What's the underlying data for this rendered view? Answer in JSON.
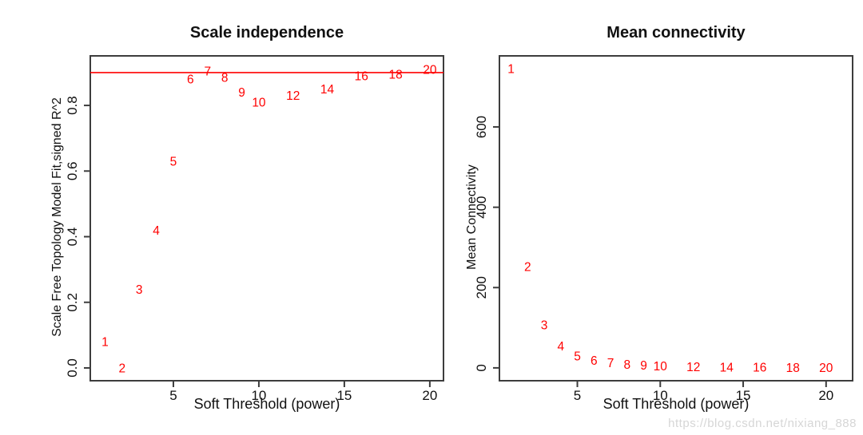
{
  "figure": {
    "background": "#ffffff",
    "text_color": "#111111",
    "accent_red": "#ff0000"
  },
  "watermark": {
    "text": "https://blog.csdn.net/nixiang_888"
  },
  "chart_data": [
    {
      "type": "scatter",
      "title": "Scale independence",
      "xlabel": "Soft Threshold (power)",
      "ylabel": "Scale Free Topology Model Fit,signed R^2",
      "marker": "numeric-text-labels",
      "point_label_color": "#ff0000",
      "x": [
        1,
        2,
        3,
        4,
        5,
        6,
        7,
        8,
        9,
        10,
        12,
        14,
        16,
        18,
        20
      ],
      "y": [
        0.08,
        0.0,
        0.24,
        0.42,
        0.63,
        0.88,
        0.905,
        0.885,
        0.84,
        0.81,
        0.83,
        0.85,
        0.89,
        0.895,
        0.91
      ],
      "point_labels": [
        "1",
        "2",
        "3",
        "4",
        "5",
        "6",
        "7",
        "8",
        "9",
        "10",
        "12",
        "14",
        "16",
        "18",
        "20"
      ],
      "xlim": [
        0.14,
        20.8
      ],
      "ylim": [
        -0.039,
        0.951
      ],
      "xticks": [
        5,
        10,
        15,
        20
      ],
      "xtick_labels": [
        "5",
        "10",
        "15",
        "20"
      ],
      "yticks": [
        0.0,
        0.2,
        0.4,
        0.6,
        0.8
      ],
      "ytick_labels": [
        "0.0",
        "0.2",
        "0.4",
        "0.6",
        "0.8"
      ],
      "grid": false,
      "legend": null,
      "hline": {
        "y": 0.9,
        "color": "#ff0000"
      }
    },
    {
      "type": "scatter",
      "title": "Mean connectivity",
      "xlabel": "Soft Threshold (power)",
      "ylabel": "Mean Connectivity",
      "marker": "numeric-text-labels",
      "point_label_color": "#ff0000",
      "x": [
        1,
        2,
        3,
        4,
        5,
        6,
        7,
        8,
        9,
        10,
        12,
        14,
        16,
        18,
        20
      ],
      "y": [
        745,
        252,
        107,
        54,
        30,
        19,
        13,
        9,
        7,
        5,
        3,
        2,
        1.5,
        1.2,
        1
      ],
      "point_labels": [
        "1",
        "2",
        "3",
        "4",
        "5",
        "6",
        "7",
        "8",
        "9",
        "10",
        "12",
        "14",
        "16",
        "18",
        "20"
      ],
      "xlim": [
        0.3,
        21.6
      ],
      "ylim": [
        -32,
        777
      ],
      "xticks": [
        5,
        10,
        15,
        20
      ],
      "xtick_labels": [
        "5",
        "10",
        "15",
        "20"
      ],
      "yticks": [
        0,
        200,
        400,
        600
      ],
      "ytick_labels": [
        "0",
        "200",
        "400",
        "600"
      ],
      "grid": false,
      "legend": null,
      "hline": null
    }
  ]
}
